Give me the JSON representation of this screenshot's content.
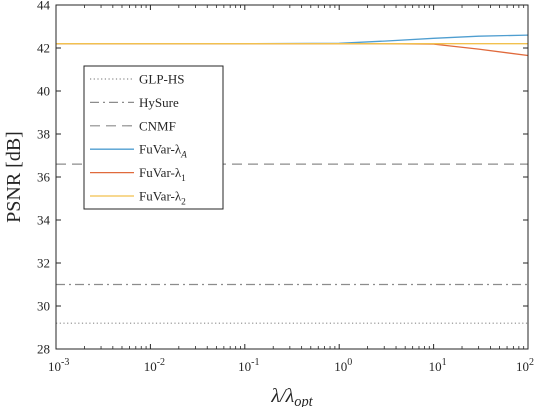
{
  "chart_data": {
    "type": "line",
    "title": "",
    "xlabel": "λ/λ_opt",
    "ylabel": "PSNR [dB]",
    "xscale": "log",
    "xlim": [
      0.001,
      100
    ],
    "ylim": [
      28,
      44
    ],
    "x_ticks": [
      {
        "value": 0.001,
        "base": "10",
        "exp": "-3"
      },
      {
        "value": 0.01,
        "base": "10",
        "exp": "-2"
      },
      {
        "value": 0.1,
        "base": "10",
        "exp": "-1"
      },
      {
        "value": 1,
        "base": "10",
        "exp": "0"
      },
      {
        "value": 10,
        "base": "10",
        "exp": "1"
      },
      {
        "value": 100,
        "base": "10",
        "exp": "2"
      }
    ],
    "y_ticks": [
      28,
      30,
      32,
      34,
      36,
      38,
      40,
      42,
      44
    ],
    "legend_position": "upper-left",
    "grid": false,
    "series": [
      {
        "name": "GLP-HS",
        "style": "dotted",
        "color": "#8c8c8c",
        "x": [
          0.001,
          100
        ],
        "y": [
          29.2,
          29.2
        ]
      },
      {
        "name": "HySure",
        "style": "dashdot",
        "color": "#8c8c8c",
        "x": [
          0.001,
          100
        ],
        "y": [
          31.0,
          31.0
        ]
      },
      {
        "name": "CNMF",
        "style": "dashed",
        "color": "#8c8c8c",
        "x": [
          0.001,
          100
        ],
        "y": [
          36.6,
          36.6
        ]
      },
      {
        "name": "FuVar-λ_A",
        "style": "solid",
        "color": "#4f9ed0",
        "x": [
          0.001,
          0.01,
          0.1,
          1,
          3,
          10,
          30,
          100
        ],
        "y": [
          42.2,
          42.2,
          42.2,
          42.22,
          42.32,
          42.45,
          42.55,
          42.6
        ]
      },
      {
        "name": "FuVar-λ_1",
        "style": "solid",
        "color": "#e06a3c",
        "x": [
          0.001,
          0.01,
          0.1,
          1,
          3,
          10,
          30,
          100
        ],
        "y": [
          42.2,
          42.2,
          42.2,
          42.2,
          42.2,
          42.18,
          41.95,
          41.65
        ]
      },
      {
        "name": "FuVar-λ_2",
        "style": "solid",
        "color": "#f2c14e",
        "x": [
          0.001,
          0.01,
          0.1,
          1,
          3,
          10,
          30,
          100
        ],
        "y": [
          42.2,
          42.2,
          42.2,
          42.2,
          42.2,
          42.2,
          42.2,
          42.2
        ]
      }
    ]
  }
}
